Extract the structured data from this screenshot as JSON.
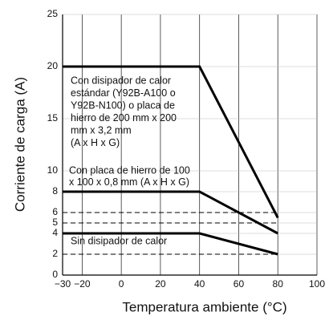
{
  "chart_data": {
    "type": "line",
    "xlabel": "Temperatura ambiente (°C)",
    "ylabel": "Corriente de carga (A)",
    "x": [
      -30,
      40,
      80
    ],
    "series": [
      {
        "values": [
          20,
          20,
          5.5
        ],
        "color": "#000000"
      },
      {
        "values": [
          8,
          8,
          4
        ],
        "color": "#000000"
      },
      {
        "values": [
          4,
          4,
          2
        ],
        "color": "#000000"
      }
    ],
    "reference_lines": [
      6,
      5,
      2
    ],
    "annotations": [
      [
        "Con disipador de calor",
        "estándar (Y92B-A100 o",
        "Y92B-N100) o placa de",
        "hierro de 200 mm x 200",
        "mm x 3,2 mm",
        "(A x H x G)"
      ],
      [
        "Con placa de hierro de 100",
        "x 100 x 0,8 mm (A x H x G)"
      ],
      [
        "Sin disipador de calor"
      ]
    ],
    "xlim": [
      -30,
      100
    ],
    "xticks": [
      {
        "value": -30,
        "label": "−30"
      },
      {
        "value": -20,
        "label": "−20"
      },
      0,
      20,
      40,
      60,
      80,
      100
    ],
    "ylim": [
      0,
      25
    ],
    "yticks": [
      0,
      2,
      4,
      5,
      6,
      8,
      10,
      15,
      20,
      25
    ],
    "grid": true
  }
}
